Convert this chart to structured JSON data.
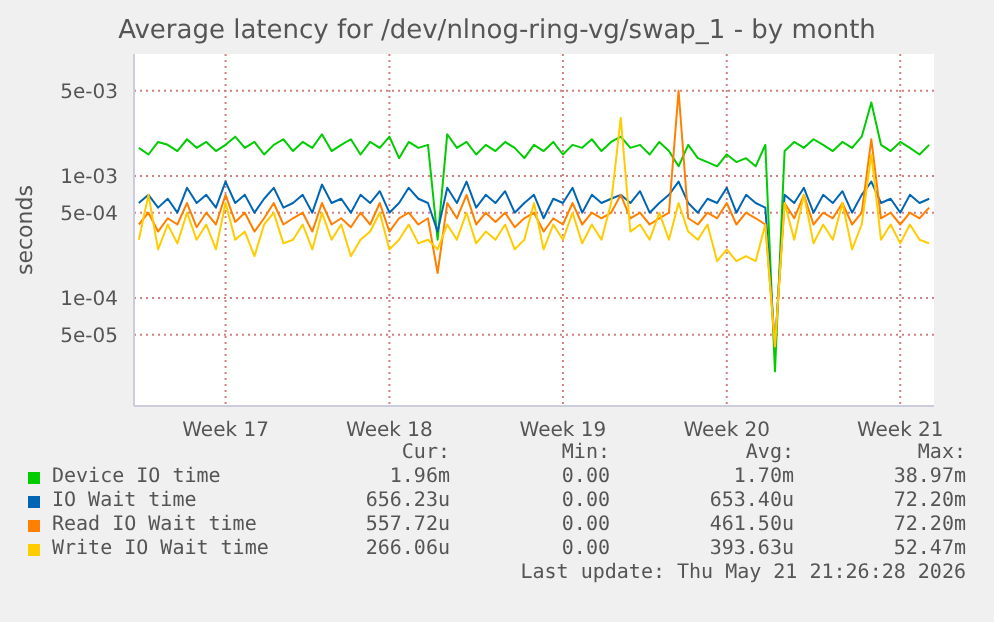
{
  "chart_data": {
    "type": "line",
    "title": "Average latency for /dev/nlnog-ring-vg/swap_1 - by month",
    "ylabel": "seconds",
    "categories": [
      null,
      null,
      null,
      null,
      null,
      null,
      null,
      null,
      null,
      "Week 17",
      null,
      null,
      null,
      null,
      null,
      null,
      null,
      null,
      null,
      null,
      null,
      null,
      null,
      null,
      null,
      null,
      "Week 18",
      null,
      null,
      null,
      null,
      null,
      null,
      null,
      null,
      null,
      null,
      null,
      null,
      null,
      null,
      null,
      null,
      null,
      "Week 19",
      null,
      null,
      null,
      null,
      null,
      null,
      null,
      null,
      null,
      null,
      null,
      null,
      null,
      null,
      null,
      null,
      "Week 20",
      null,
      null,
      null,
      null,
      null,
      null,
      null,
      null,
      null,
      null,
      null,
      null,
      null,
      null,
      null,
      null,
      null,
      "Week 21",
      null,
      null,
      null
    ],
    "log": true,
    "ylim": [
      1.3e-05,
      0.01
    ],
    "yticks": [
      {
        "value": 5e-05,
        "label": "5e-05"
      },
      {
        "value": 0.0001,
        "label": "1e-04"
      },
      {
        "value": 0.0005,
        "label": "5e-04"
      },
      {
        "value": 0.001,
        "label": "1e-03"
      },
      {
        "value": 0.005,
        "label": "5e-03"
      }
    ],
    "grid": true,
    "legend": "bottom",
    "series": [
      {
        "name": "Device IO time",
        "color": "#00cc00",
        "values": [
          0.0017,
          0.0015,
          0.0019,
          0.0018,
          0.0016,
          0.002,
          0.0017,
          0.0019,
          0.0016,
          0.0018,
          0.0021,
          0.0017,
          0.0019,
          0.0015,
          0.0018,
          0.002,
          0.0016,
          0.0019,
          0.0017,
          0.0022,
          0.0016,
          0.0018,
          0.002,
          0.0015,
          0.0019,
          0.0017,
          0.0021,
          0.0014,
          0.0019,
          0.0017,
          0.0018,
          0.0003,
          0.0022,
          0.0017,
          0.0019,
          0.0015,
          0.0018,
          0.0016,
          0.0019,
          0.0017,
          0.0014,
          0.0018,
          0.0016,
          0.0019,
          0.0015,
          0.0018,
          0.0017,
          0.002,
          0.0016,
          0.0019,
          0.0021,
          0.0017,
          0.0018,
          0.0015,
          0.0019,
          0.0016,
          0.0012,
          0.0018,
          0.0014,
          0.0013,
          0.0012,
          0.0015,
          0.0013,
          0.0014,
          0.0012,
          0.0018,
          2.5e-05,
          0.0016,
          0.0019,
          0.0017,
          0.002,
          0.0018,
          0.0016,
          0.0019,
          0.0017,
          0.0021,
          0.004,
          0.0018,
          0.0016,
          0.0019,
          0.0017,
          0.0015,
          0.0018
        ]
      },
      {
        "name": "IO Wait time",
        "color": "#0066b3",
        "values": [
          0.0006,
          0.0007,
          0.00055,
          0.00065,
          0.0005,
          0.0008,
          0.0006,
          0.0007,
          0.00055,
          0.0009,
          0.0006,
          0.0007,
          0.0005,
          0.00065,
          0.0008,
          0.00055,
          0.0006,
          0.0007,
          0.0005,
          0.00085,
          0.0006,
          0.00065,
          0.0005,
          0.0007,
          0.0006,
          0.00075,
          0.0005,
          0.0006,
          0.0008,
          0.00065,
          0.0006,
          0.00035,
          0.0008,
          0.0006,
          0.0009,
          0.00055,
          0.0007,
          0.0006,
          0.00075,
          0.0005,
          0.0006,
          0.0007,
          0.00045,
          0.00065,
          0.0006,
          0.0008,
          0.0005,
          0.0007,
          0.0006,
          0.00065,
          0.0007,
          0.0006,
          0.00075,
          0.0005,
          0.0006,
          0.0007,
          0.0009,
          0.0006,
          0.0005,
          0.00065,
          0.0006,
          0.0008,
          0.0005,
          0.0007,
          0.0006,
          0.00055,
          4e-05,
          0.0007,
          0.0006,
          0.0008,
          0.0005,
          0.0007,
          0.0006,
          0.00075,
          0.0005,
          0.0007,
          0.0009,
          0.0006,
          0.00065,
          0.0005,
          0.0007,
          0.0006,
          0.00065
        ]
      },
      {
        "name": "Read IO Wait time",
        "color": "#ff8000",
        "values": [
          0.0004,
          0.0005,
          0.00035,
          0.00045,
          0.0004,
          0.0006,
          0.00038,
          0.0005,
          0.0004,
          0.0007,
          0.00042,
          0.0005,
          0.00035,
          0.00045,
          0.0006,
          0.0004,
          0.00045,
          0.0005,
          0.00035,
          0.0006,
          0.0004,
          0.00045,
          0.00038,
          0.0005,
          0.0004,
          0.0006,
          0.00035,
          0.00045,
          0.0005,
          0.0004,
          0.00045,
          0.00016,
          0.0006,
          0.00045,
          0.0007,
          0.0004,
          0.0005,
          0.00042,
          0.0005,
          0.00038,
          0.00045,
          0.0005,
          0.00035,
          0.00045,
          0.0004,
          0.0006,
          0.0004,
          0.0005,
          0.00045,
          0.0005,
          0.0007,
          0.00045,
          0.0005,
          0.0004,
          0.00045,
          0.0005,
          0.005,
          0.00045,
          0.0004,
          0.0005,
          0.00045,
          0.0006,
          0.0004,
          0.0005,
          0.00045,
          0.0004,
          4e-05,
          0.0006,
          0.00045,
          0.0007,
          0.0004,
          0.0005,
          0.00045,
          0.0006,
          0.0004,
          0.0005,
          0.002,
          0.00045,
          0.0005,
          0.0004,
          0.0005,
          0.00045,
          0.00055
        ]
      },
      {
        "name": "Write IO Wait time",
        "color": "#ffcc00",
        "values": [
          0.0003,
          0.0007,
          0.00025,
          0.0004,
          0.00028,
          0.0005,
          0.0003,
          0.0004,
          0.00025,
          0.0006,
          0.0003,
          0.00035,
          0.00022,
          0.0004,
          0.0005,
          0.00028,
          0.0003,
          0.0004,
          0.00025,
          0.0005,
          0.0003,
          0.0004,
          0.00022,
          0.0003,
          0.00035,
          0.0005,
          0.00025,
          0.0003,
          0.0004,
          0.00028,
          0.0003,
          0.00025,
          0.0004,
          0.0003,
          0.0005,
          0.00028,
          0.00035,
          0.0003,
          0.0004,
          0.00025,
          0.0003,
          0.0006,
          0.00025,
          0.0004,
          0.0003,
          0.0005,
          0.00028,
          0.0004,
          0.0003,
          0.0006,
          0.003,
          0.00035,
          0.0004,
          0.0003,
          0.0005,
          0.0003,
          0.0006,
          0.00035,
          0.0003,
          0.0004,
          0.0002,
          0.00025,
          0.0002,
          0.00022,
          0.0002,
          0.0004,
          4e-05,
          0.0006,
          0.0003,
          0.0007,
          0.00028,
          0.0004,
          0.0003,
          0.0006,
          0.00025,
          0.0004,
          0.0015,
          0.0003,
          0.0004,
          0.00028,
          0.0004,
          0.0003,
          0.00028
        ]
      }
    ],
    "annotations": [
      "Cur:",
      "Min:",
      "Avg:",
      "Max:",
      "1.96m",
      "0.00",
      "1.70m",
      "38.97m",
      "656.23u",
      "0.00",
      "653.40u",
      "72.20m",
      "557.72u",
      "0.00",
      "461.50u",
      "72.20m",
      "266.06u",
      "0.00",
      "393.63u",
      "52.47m",
      "Last update: Thu May 21 21:26:28 2026"
    ]
  }
}
